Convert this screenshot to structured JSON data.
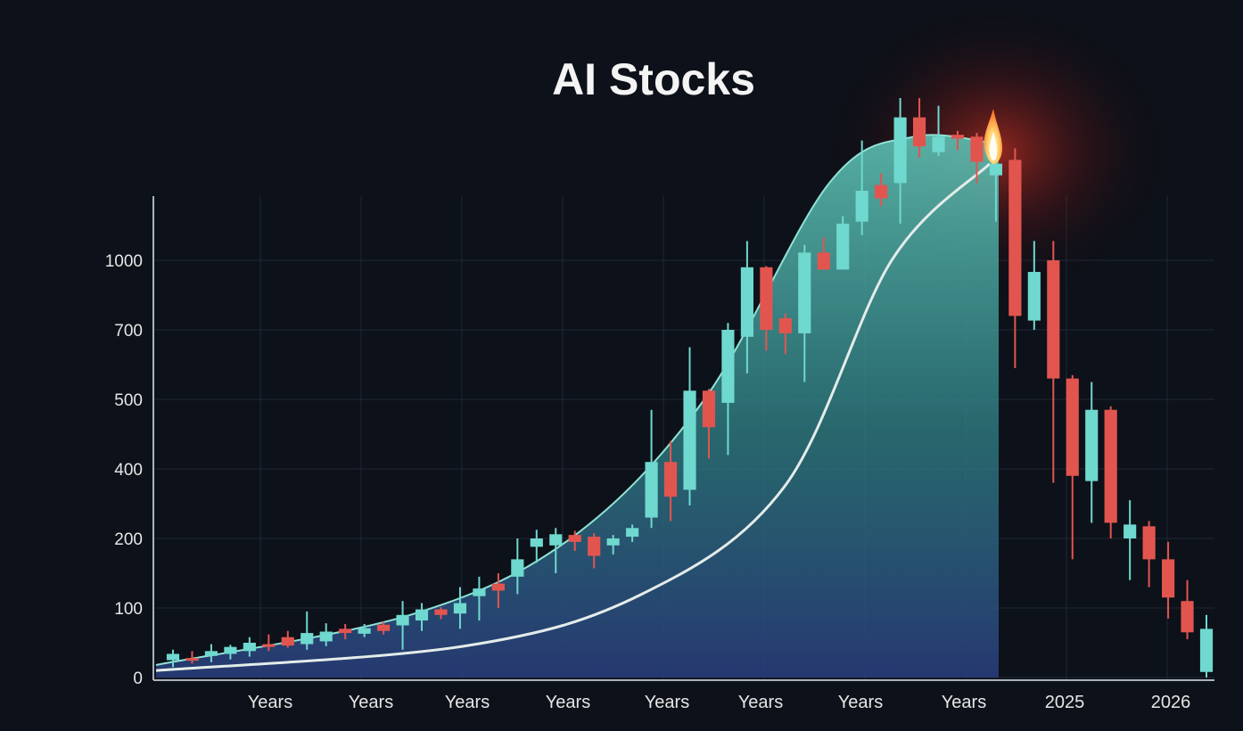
{
  "chart_data": {
    "type": "candlestick",
    "title": "AI Stocks",
    "xlabel": "",
    "ylabel": "",
    "yticks": [
      "0",
      "100",
      "200",
      "400",
      "500",
      "700",
      "1000"
    ],
    "xticks": [
      "Years",
      "Years",
      "Years",
      "Years",
      "Years",
      "Years",
      "Years",
      "Years",
      "2025",
      "2026"
    ],
    "grid": true,
    "colors": {
      "background": "#0d1119",
      "up": "#6fd8cf",
      "down": "#e2554f",
      "area": "#4fa89c",
      "trend_line": "#dfe8e6",
      "flame": "#ffcf6a",
      "grid": "#1f2836"
    },
    "candles": [
      {
        "open": 25,
        "high": 40,
        "low": 15,
        "close": 34,
        "dir": "up"
      },
      {
        "open": 28,
        "high": 38,
        "low": 20,
        "close": 27,
        "dir": "down"
      },
      {
        "open": 31,
        "high": 48,
        "low": 22,
        "close": 38,
        "dir": "up"
      },
      {
        "open": 34,
        "high": 47,
        "low": 26,
        "close": 44,
        "dir": "up"
      },
      {
        "open": 38,
        "high": 58,
        "low": 30,
        "close": 50,
        "dir": "up"
      },
      {
        "open": 48,
        "high": 62,
        "low": 38,
        "close": 44,
        "dir": "down"
      },
      {
        "open": 58,
        "high": 67,
        "low": 43,
        "close": 46,
        "dir": "down"
      },
      {
        "open": 48,
        "high": 95,
        "low": 40,
        "close": 64,
        "dir": "up"
      },
      {
        "open": 52,
        "high": 78,
        "low": 45,
        "close": 66,
        "dir": "up"
      },
      {
        "open": 70,
        "high": 77,
        "low": 55,
        "close": 64,
        "dir": "down"
      },
      {
        "open": 63,
        "high": 77,
        "low": 58,
        "close": 71,
        "dir": "up"
      },
      {
        "open": 76,
        "high": 80,
        "low": 62,
        "close": 67,
        "dir": "down"
      },
      {
        "open": 75,
        "high": 110,
        "low": 40,
        "close": 90,
        "dir": "up"
      },
      {
        "open": 82,
        "high": 107,
        "low": 67,
        "close": 98,
        "dir": "up"
      },
      {
        "open": 98,
        "high": 101,
        "low": 84,
        "close": 90,
        "dir": "down"
      },
      {
        "open": 92,
        "high": 130,
        "low": 70,
        "close": 107,
        "dir": "up"
      },
      {
        "open": 117,
        "high": 145,
        "low": 82,
        "close": 128,
        "dir": "up"
      },
      {
        "open": 135,
        "high": 150,
        "low": 100,
        "close": 125,
        "dir": "down"
      },
      {
        "open": 145,
        "high": 200,
        "low": 120,
        "close": 170,
        "dir": "up"
      },
      {
        "open": 188,
        "high": 225,
        "low": 165,
        "close": 200,
        "dir": "up"
      },
      {
        "open": 190,
        "high": 230,
        "low": 150,
        "close": 212,
        "dir": "up"
      },
      {
        "open": 210,
        "high": 222,
        "low": 182,
        "close": 195,
        "dir": "down"
      },
      {
        "open": 205,
        "high": 215,
        "low": 157,
        "close": 175,
        "dir": "down"
      },
      {
        "open": 190,
        "high": 210,
        "low": 177,
        "close": 200,
        "dir": "up"
      },
      {
        "open": 205,
        "high": 240,
        "low": 195,
        "close": 230,
        "dir": "up"
      },
      {
        "open": 260,
        "high": 485,
        "low": 230,
        "close": 410,
        "dir": "up"
      },
      {
        "open": 410,
        "high": 440,
        "low": 250,
        "close": 320,
        "dir": "down"
      },
      {
        "open": 340,
        "high": 650,
        "low": 295,
        "close": 525,
        "dir": "up"
      },
      {
        "open": 525,
        "high": 530,
        "low": 415,
        "close": 460,
        "dir": "down"
      },
      {
        "open": 495,
        "high": 730,
        "low": 420,
        "close": 700,
        "dir": "up"
      },
      {
        "open": 680,
        "high": 1050,
        "low": 575,
        "close": 970,
        "dir": "up"
      },
      {
        "open": 970,
        "high": 975,
        "low": 640,
        "close": 700,
        "dir": "down"
      },
      {
        "open": 750,
        "high": 770,
        "low": 630,
        "close": 690,
        "dir": "down"
      },
      {
        "open": 690,
        "high": 1040,
        "low": 550,
        "close": 1020,
        "dir": "up"
      },
      {
        "open": 1020,
        "high": 1060,
        "low": 960,
        "close": 960,
        "dir": "down"
      },
      {
        "open": 960,
        "high": 1115,
        "low": 960,
        "close": 1095,
        "dir": "up"
      },
      {
        "open": 1100,
        "high": 1310,
        "low": 1065,
        "close": 1180,
        "dir": "up"
      },
      {
        "open": 1195,
        "high": 1225,
        "low": 1140,
        "close": 1160,
        "dir": "down"
      },
      {
        "open": 1200,
        "high": 1420,
        "low": 1095,
        "close": 1370,
        "dir": "up"
      },
      {
        "open": 1370,
        "high": 1420,
        "low": 1265,
        "close": 1295,
        "dir": "down"
      },
      {
        "open": 1280,
        "high": 1400,
        "low": 1270,
        "close": 1320,
        "dir": "up"
      },
      {
        "open": 1325,
        "high": 1335,
        "low": 1285,
        "close": 1315,
        "dir": "down"
      },
      {
        "open": 1320,
        "high": 1330,
        "low": 1200,
        "close": 1255,
        "dir": "down"
      },
      {
        "open": 1220,
        "high": 1350,
        "low": 1100,
        "close": 1250,
        "dir": "up"
      },
      {
        "open": 1260,
        "high": 1290,
        "low": 590,
        "close": 760,
        "dir": "down"
      },
      {
        "open": 740,
        "high": 1050,
        "low": 700,
        "close": 950,
        "dir": "up"
      },
      {
        "open": 1000,
        "high": 1050,
        "low": 360,
        "close": 560,
        "dir": "down"
      },
      {
        "open": 560,
        "high": 570,
        "low": 170,
        "close": 380,
        "dir": "down"
      },
      {
        "open": 365,
        "high": 550,
        "low": 245,
        "close": 485,
        "dir": "up"
      },
      {
        "open": 485,
        "high": 490,
        "low": 200,
        "close": 245,
        "dir": "down"
      },
      {
        "open": 200,
        "high": 310,
        "low": 140,
        "close": 240,
        "dir": "up"
      },
      {
        "open": 235,
        "high": 250,
        "low": 130,
        "close": 170,
        "dir": "down"
      },
      {
        "open": 170,
        "high": 195,
        "low": 85,
        "close": 115,
        "dir": "down"
      },
      {
        "open": 110,
        "high": 140,
        "low": 55,
        "close": 65,
        "dir": "down"
      },
      {
        "open": 8,
        "high": 90,
        "low": 0,
        "close": 70,
        "dir": "up"
      }
    ],
    "area_envelope": [
      18,
      90,
      200,
      500,
      1200,
      1320,
      1300
    ],
    "trend_line": [
      10,
      45,
      120,
      350,
      1000,
      1250
    ]
  }
}
